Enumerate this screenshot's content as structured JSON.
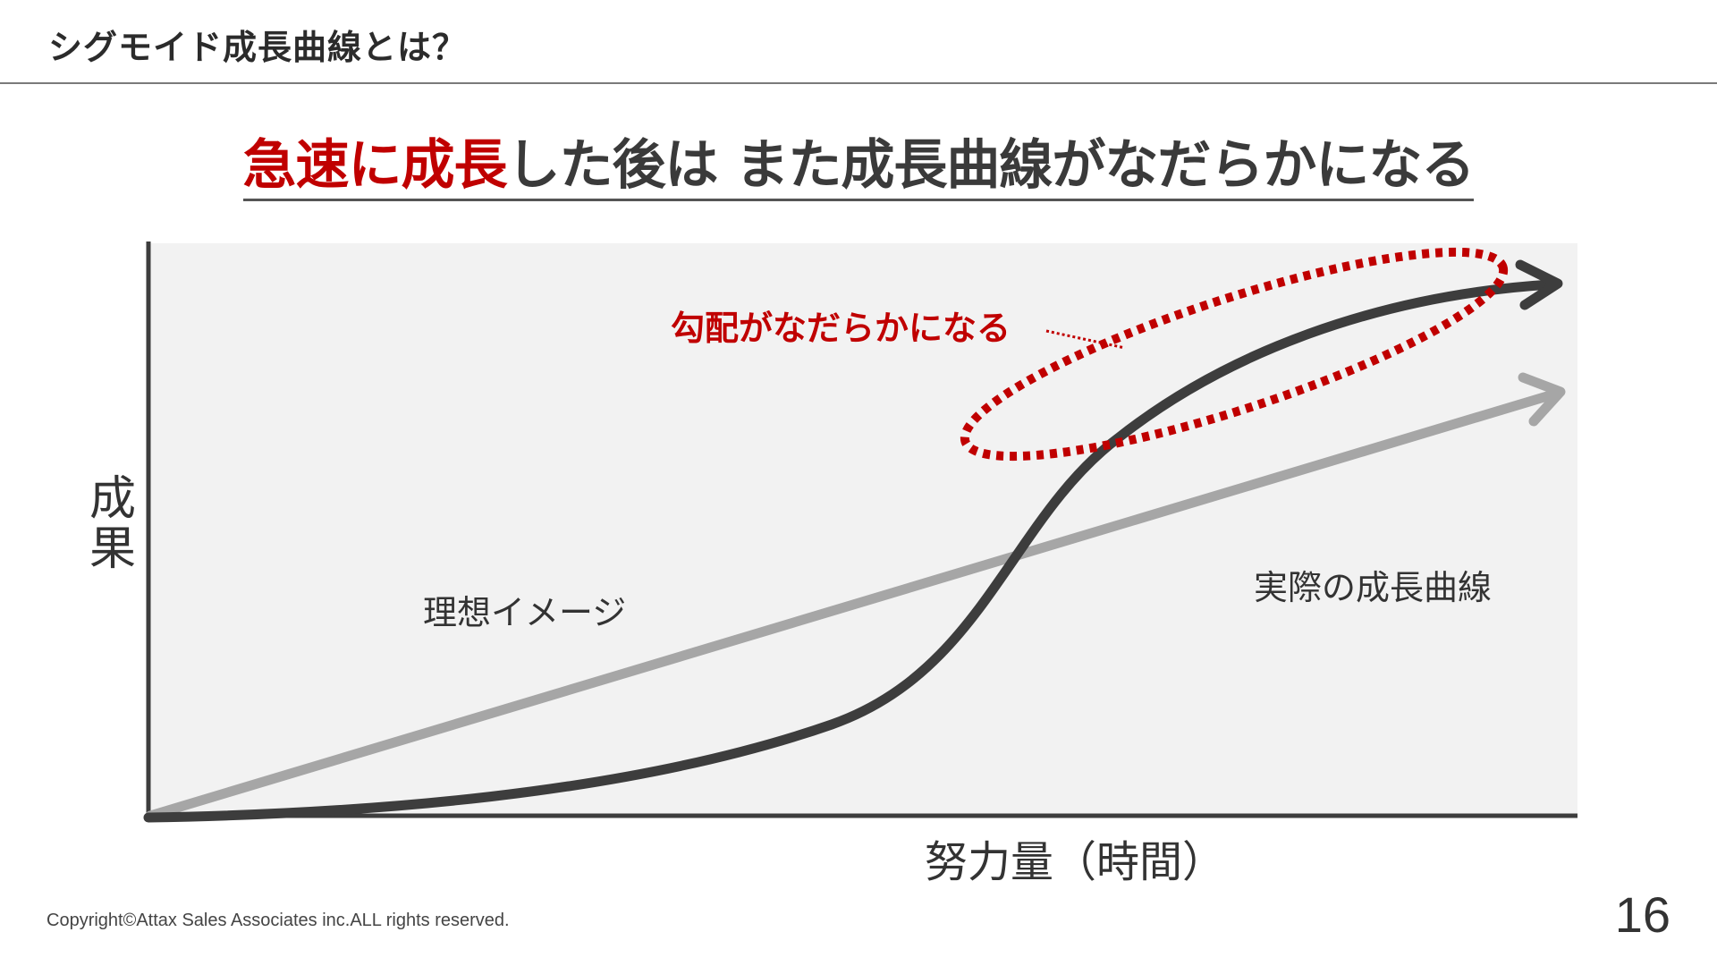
{
  "header": {
    "title": "シグモイド成長曲線とは？"
  },
  "headline": {
    "red_text": "急速に成長",
    "dark_text": "した後は また成長曲線がなだらかになる"
  },
  "diagram": {
    "y_axis_label": "成果",
    "x_axis_label": "努力量（時間）",
    "annotation": "勾配がなだらかになる",
    "ideal_label": "理想イメージ",
    "actual_label": "実際の成長曲線"
  },
  "colors": {
    "accent_red": "#c00000",
    "actual_curve": "#3d3d3d",
    "ideal_line": "#a6a6a6",
    "plot_background": "#f2f2f2"
  },
  "footer": {
    "copyright": "Copyright©Attax Sales Associates inc.ALL rights reserved.",
    "page_number": "16"
  }
}
